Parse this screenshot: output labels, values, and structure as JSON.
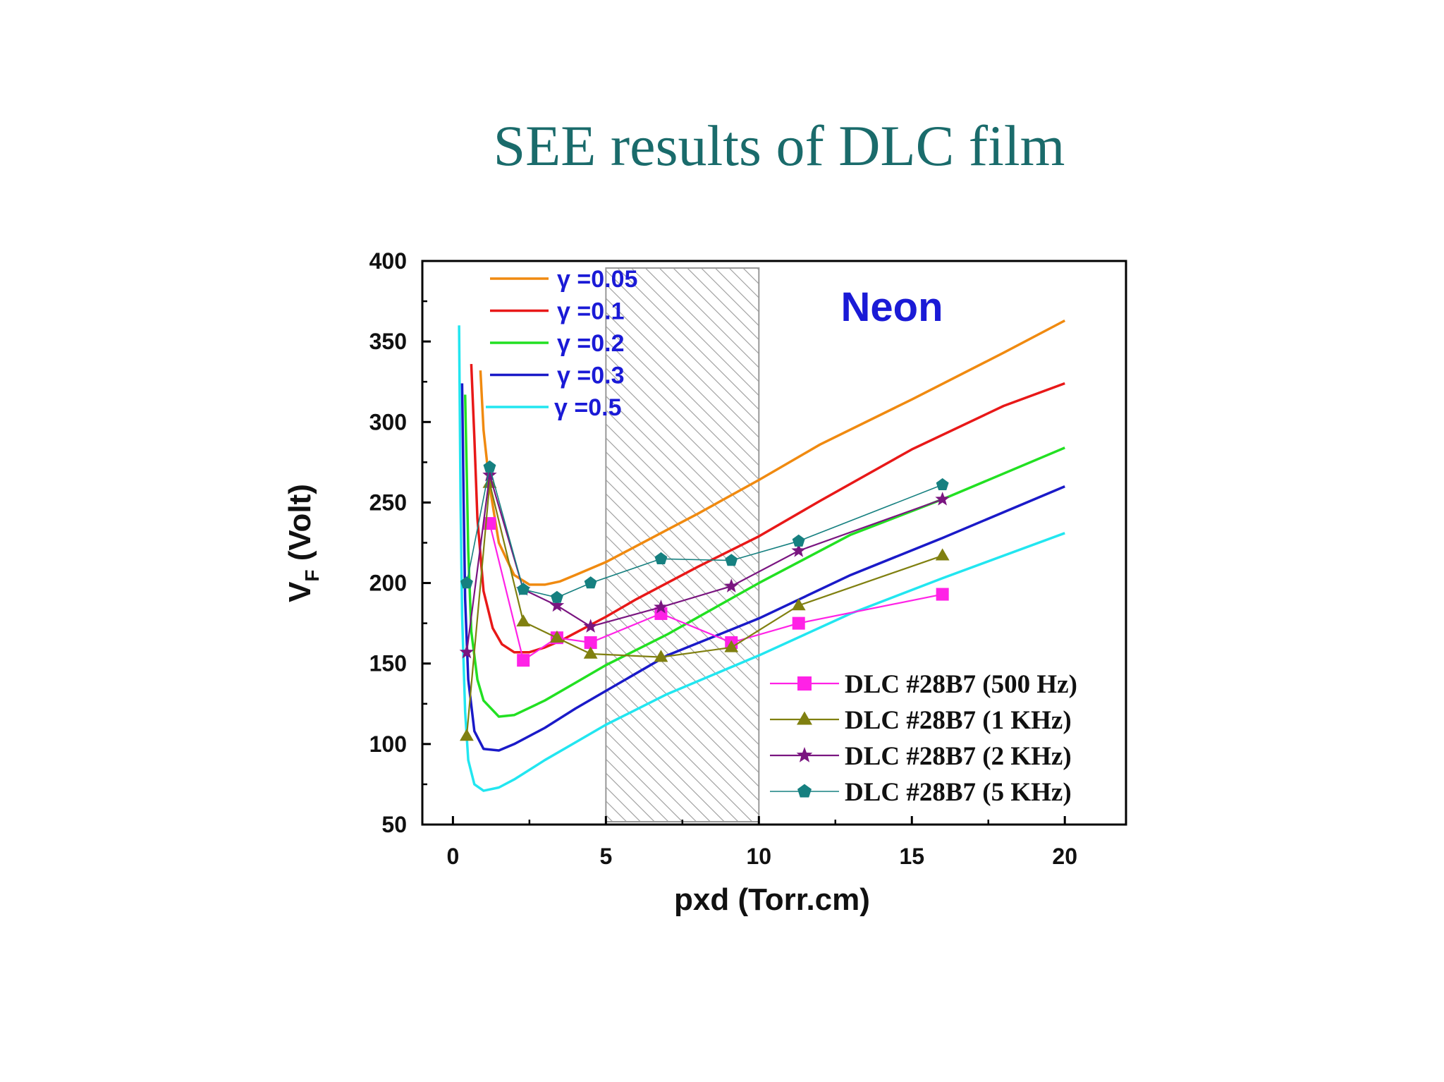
{
  "slide": {
    "title": "SEE results of DLC film"
  },
  "chart_data": {
    "type": "line",
    "title": "",
    "xlabel": "pxd (Torr.cm)",
    "ylabel_main": "V",
    "ylabel_sub": "F",
    "ylabel_rest": " (Volt)",
    "xlim": [
      -1,
      22
    ],
    "ylim": [
      50,
      400
    ],
    "xticks": [
      0,
      5,
      10,
      15,
      20
    ],
    "yticks": [
      50,
      100,
      150,
      200,
      250,
      300,
      350,
      400
    ],
    "annotation": "Neon",
    "shaded_region": [
      5,
      10
    ],
    "grid": false,
    "theory_series": [
      {
        "label": "γ =0.05",
        "color": "#f08a10",
        "x": [
          0.9,
          1.0,
          1.2,
          1.5,
          2.0,
          2.5,
          3.0,
          3.5,
          4.0,
          5.0,
          6.0,
          7.0,
          8.0,
          10.0,
          12.0,
          15.0,
          18.0,
          20.0
        ],
        "y": [
          332,
          295,
          260,
          225,
          205,
          199,
          199,
          201,
          205,
          213,
          223,
          233,
          243,
          264,
          286,
          314,
          343,
          363
        ]
      },
      {
        "label": "γ =0.1",
        "color": "#e81818",
        "x": [
          0.6,
          0.7,
          0.8,
          1.0,
          1.3,
          1.6,
          2.0,
          2.5,
          3.0,
          3.5,
          4.0,
          5.0,
          6.0,
          8.0,
          10.0,
          12.0,
          15.0,
          18.0,
          20.0
        ],
        "y": [
          336,
          290,
          240,
          195,
          172,
          162,
          157,
          157,
          160,
          164,
          169,
          179,
          190,
          210,
          229,
          251,
          283,
          310,
          324
        ]
      },
      {
        "label": "γ =0.2",
        "color": "#22e022",
        "x": [
          0.4,
          0.45,
          0.5,
          0.6,
          0.8,
          1.0,
          1.5,
          2.0,
          3.0,
          4.0,
          5.0,
          7.0,
          10.0,
          13.0,
          16.0,
          20.0
        ],
        "y": [
          317,
          270,
          220,
          170,
          140,
          127,
          117,
          118,
          127,
          138,
          149,
          168,
          200,
          230,
          252,
          284
        ]
      },
      {
        "label": "γ =0.3",
        "color": "#1a1ac8",
        "x": [
          0.3,
          0.35,
          0.4,
          0.5,
          0.7,
          1.0,
          1.5,
          2.0,
          3.0,
          4.0,
          5.0,
          7.0,
          10.0,
          13.0,
          16.0,
          20.0
        ],
        "y": [
          324,
          250,
          190,
          140,
          108,
          97,
          96,
          100,
          110,
          122,
          133,
          155,
          178,
          205,
          228,
          260
        ]
      },
      {
        "label": "γ =0.5",
        "color": "#22e6f0",
        "x": [
          0.2,
          0.25,
          0.3,
          0.4,
          0.5,
          0.7,
          1.0,
          1.5,
          2.0,
          3.0,
          4.0,
          5.0,
          7.0,
          10.0,
          13.0,
          16.0,
          20.0
        ],
        "y": [
          360,
          250,
          180,
          120,
          90,
          75,
          71,
          73,
          78,
          90,
          101,
          112,
          131,
          155,
          181,
          203,
          231
        ]
      }
    ],
    "measured_series": [
      {
        "label": "DLC #28B7 (500 Hz)",
        "color": "#ff22e6",
        "marker": "square",
        "x": [
          1.2,
          2.3,
          3.4,
          4.5,
          6.8,
          9.1,
          11.3,
          16.0
        ],
        "y": [
          237,
          152,
          166,
          163,
          181,
          163,
          175,
          193
        ]
      },
      {
        "label": "DLC #28B7 (1 KHz)",
        "color": "#808010",
        "marker": "triangle",
        "x": [
          0.45,
          1.2,
          2.3,
          3.4,
          4.5,
          6.8,
          9.1,
          11.3,
          16.0
        ],
        "y": [
          105,
          262,
          176,
          166,
          156,
          154,
          160,
          186,
          217
        ]
      },
      {
        "label": "DLC #28B7 (2 KHz)",
        "color": "#7a1580",
        "marker": "star",
        "x": [
          0.45,
          1.2,
          2.3,
          3.4,
          4.5,
          6.8,
          9.1,
          11.3,
          16.0
        ],
        "y": [
          157,
          267,
          196,
          186,
          173,
          185,
          198,
          220,
          252
        ]
      },
      {
        "label": "DLC #28B7 (5 KHz)",
        "color": "#168080",
        "marker": "pentagon",
        "x": [
          0.45,
          1.2,
          2.3,
          3.4,
          4.5,
          6.8,
          9.1,
          11.3,
          16.0
        ],
        "y": [
          200,
          272,
          196,
          191,
          200,
          215,
          214,
          226,
          261
        ]
      }
    ]
  }
}
